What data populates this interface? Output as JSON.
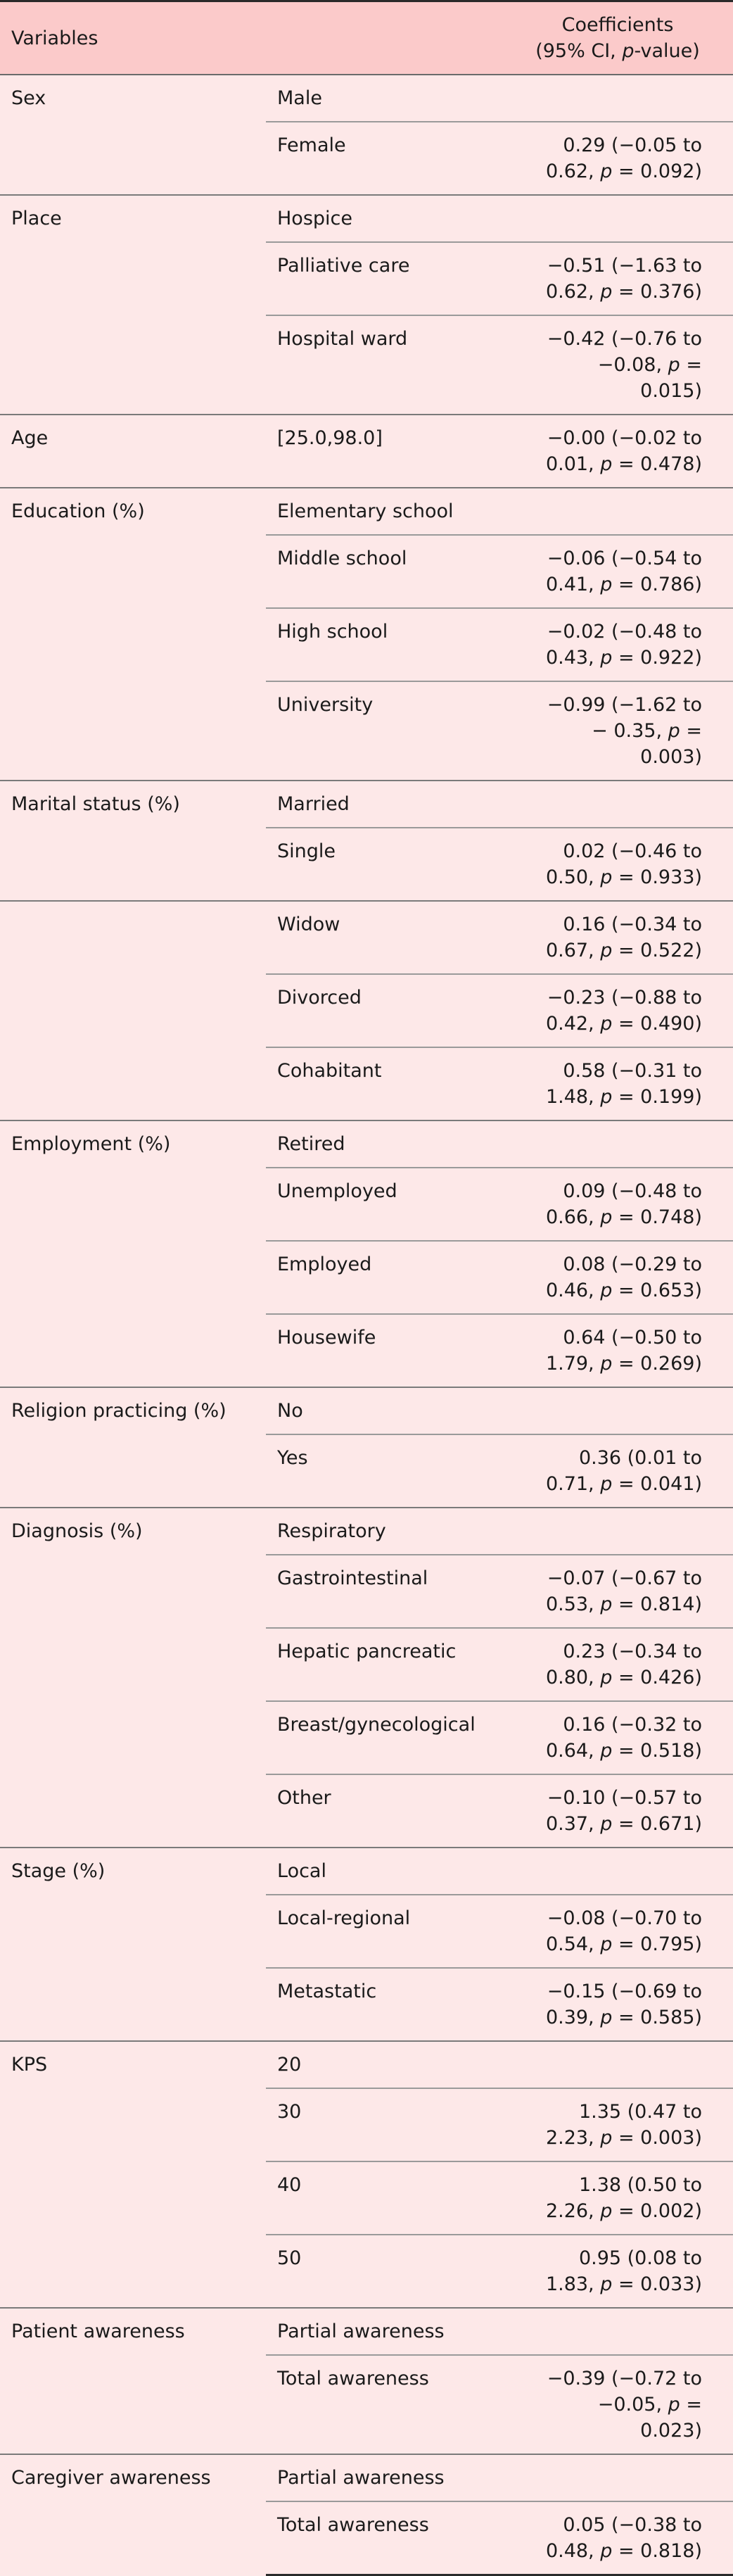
{
  "table": {
    "header": {
      "variables": "Variables",
      "coefficients_line1": "Coefficients",
      "coefficients_line2_pre": "(95% CI, ",
      "coefficients_line2_italic": "p",
      "coefficients_line2_post": "-value)"
    },
    "groups": [
      {
        "variable": "Sex",
        "rows": [
          {
            "level": "Male",
            "coef": ""
          },
          {
            "level": "Female",
            "coef": "0.29 (−0.05 to 0.62, p = 0.092)"
          }
        ]
      },
      {
        "variable": "Place",
        "rows": [
          {
            "level": "Hospice",
            "coef": ""
          },
          {
            "level": "Palliative care",
            "coef": "−0.51 (−1.63 to 0.62, p = 0.376)"
          },
          {
            "level": "Hospital ward",
            "coef": "−0.42 (−0.76 to −0.08, p = 0.015)"
          }
        ]
      },
      {
        "variable": "Age",
        "rows": [
          {
            "level": "[25.0,98.0]",
            "coef": "−0.00 (−0.02 to 0.01, p = 0.478)"
          }
        ]
      },
      {
        "variable": "Education (%)",
        "rows": [
          {
            "level": "Elementary school",
            "coef": ""
          },
          {
            "level": "Middle school",
            "coef": "−0.06 (−0.54 to 0.41, p = 0.786)"
          },
          {
            "level": "High school",
            "coef": "−0.02 (−0.48 to 0.43, p = 0.922)"
          },
          {
            "level": "University",
            "coef": "−0.99 (−1.62 to − 0.35, p = 0.003)"
          }
        ]
      },
      {
        "variable": "Marital status (%)",
        "rows": [
          {
            "level": "Married",
            "coef": ""
          },
          {
            "level": "Single",
            "coef": "0.02 (−0.46 to 0.50, p = 0.933)"
          }
        ]
      },
      {
        "variable": "",
        "rows": [
          {
            "level": "Widow",
            "coef": "0.16 (−0.34 to 0.67, p = 0.522)"
          },
          {
            "level": "Divorced",
            "coef": "−0.23 (−0.88 to 0.42, p = 0.490)"
          },
          {
            "level": "Cohabitant",
            "coef": "0.58 (−0.31 to 1.48, p = 0.199)"
          }
        ]
      },
      {
        "variable": "Employment (%)",
        "rows": [
          {
            "level": "Retired",
            "coef": ""
          },
          {
            "level": "Unemployed",
            "coef": "0.09 (−0.48 to 0.66, p = 0.748)"
          },
          {
            "level": "Employed",
            "coef": "0.08 (−0.29 to 0.46, p = 0.653)"
          },
          {
            "level": "Housewife",
            "coef": "0.64 (−0.50 to 1.79, p = 0.269)"
          }
        ]
      },
      {
        "variable": "Religion practicing (%)",
        "rows": [
          {
            "level": "No",
            "coef": ""
          },
          {
            "level": "Yes",
            "coef": "0.36 (0.01 to 0.71, p = 0.041)"
          }
        ]
      },
      {
        "variable": "Diagnosis (%)",
        "rows": [
          {
            "level": "Respiratory",
            "coef": ""
          },
          {
            "level": "Gastrointestinal",
            "coef": "−0.07 (−0.67 to 0.53, p = 0.814)"
          },
          {
            "level": "Hepatic pancreatic",
            "coef": "0.23 (−0.34 to 0.80, p = 0.426)"
          },
          {
            "level": "Breast/gynecological",
            "coef": "0.16 (−0.32 to 0.64, p = 0.518)"
          },
          {
            "level": "Other",
            "coef": "−0.10 (−0.57 to 0.37, p = 0.671)"
          }
        ]
      },
      {
        "variable": "Stage (%)",
        "rows": [
          {
            "level": "Local",
            "coef": ""
          },
          {
            "level": "Local-regional",
            "coef": "−0.08 (−0.70 to 0.54, p = 0.795)"
          },
          {
            "level": "Metastatic",
            "coef": "−0.15 (−0.69 to 0.39, p = 0.585)"
          }
        ]
      },
      {
        "variable": "KPS",
        "rows": [
          {
            "level": "20",
            "coef": ""
          },
          {
            "level": "30",
            "coef": "1.35 (0.47 to 2.23, p = 0.003)"
          },
          {
            "level": "40",
            "coef": "1.38 (0.50 to 2.26, p = 0.002)"
          },
          {
            "level": "50",
            "coef": "0.95 (0.08 to 1.83, p = 0.033)"
          }
        ]
      },
      {
        "variable": "Patient awareness",
        "rows": [
          {
            "level": "Partial awareness",
            "coef": ""
          },
          {
            "level": "Total awareness",
            "coef": "−0.39 (−0.72 to −0.05, p = 0.023)"
          }
        ]
      },
      {
        "variable": "Caregiver awareness",
        "rows": [
          {
            "level": "Partial awareness",
            "coef": ""
          },
          {
            "level": "Total awareness",
            "coef": "0.05 (−0.38 to 0.48, p = 0.818)"
          }
        ]
      }
    ]
  }
}
